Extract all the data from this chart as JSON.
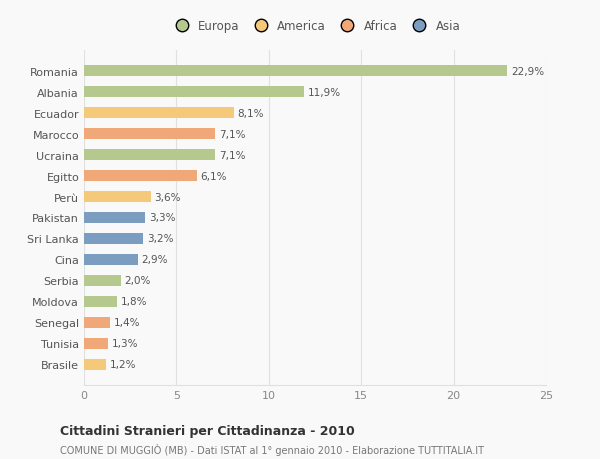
{
  "categories": [
    "Romania",
    "Albania",
    "Ecuador",
    "Marocco",
    "Ucraina",
    "Egitto",
    "Perù",
    "Pakistan",
    "Sri Lanka",
    "Cina",
    "Serbia",
    "Moldova",
    "Senegal",
    "Tunisia",
    "Brasile"
  ],
  "values": [
    22.9,
    11.9,
    8.1,
    7.1,
    7.1,
    6.1,
    3.6,
    3.3,
    3.2,
    2.9,
    2.0,
    1.8,
    1.4,
    1.3,
    1.2
  ],
  "labels": [
    "22,9%",
    "11,9%",
    "8,1%",
    "7,1%",
    "7,1%",
    "6,1%",
    "3,6%",
    "3,3%",
    "3,2%",
    "2,9%",
    "2,0%",
    "1,8%",
    "1,4%",
    "1,3%",
    "1,2%"
  ],
  "colors": [
    "#b5c98e",
    "#b5c98e",
    "#f5c97a",
    "#f0a878",
    "#b5c98e",
    "#f0a878",
    "#f5c97a",
    "#7b9ec0",
    "#7b9ec0",
    "#7b9ec0",
    "#b5c98e",
    "#b5c98e",
    "#f0a878",
    "#f0a878",
    "#f5c97a"
  ],
  "legend_labels": [
    "Europa",
    "America",
    "Africa",
    "Asia"
  ],
  "legend_colors": [
    "#b5c98e",
    "#f5c97a",
    "#f0a878",
    "#7b9ec0"
  ],
  "title": "Cittadini Stranieri per Cittadinanza - 2010",
  "subtitle": "COMUNE DI MUGGIÒ (MB) - Dati ISTAT al 1° gennaio 2010 - Elaborazione TUTTITALIA.IT",
  "xlim": [
    0,
    25
  ],
  "xticks": [
    0,
    5,
    10,
    15,
    20,
    25
  ],
  "background_color": "#f9f9f9",
  "grid_color": "#e0e0e0"
}
